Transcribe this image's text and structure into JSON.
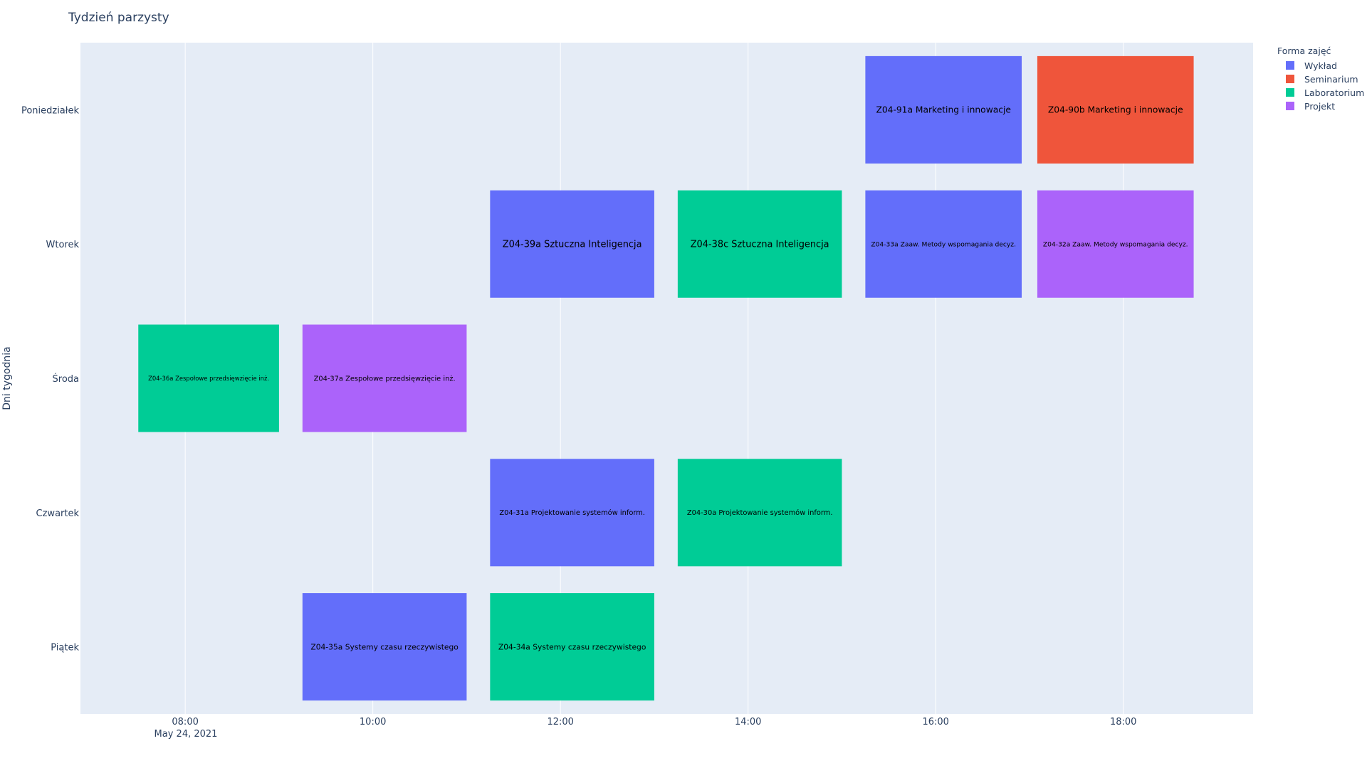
{
  "chart_data": {
    "type": "timeline",
    "title": "Tydzień parzysty",
    "xlabel": "",
    "ylabel": "Dni tygodnia",
    "x_date_label": "May 24, 2021",
    "x_range": [
      "2021-05-24 06:53",
      "2021-05-24 19:23"
    ],
    "x_ticks": [
      "08:00",
      "10:00",
      "12:00",
      "14:00",
      "16:00",
      "18:00"
    ],
    "categories": [
      "Poniedziałek",
      "Wtorek",
      "Środa",
      "Czwartek",
      "Piątek"
    ],
    "grid": true,
    "legend": {
      "title": "Forma zajęć",
      "position": "top-right",
      "entries": [
        {
          "name": "Wykład",
          "color": "#636efa"
        },
        {
          "name": "Seminarium",
          "color": "#ef553b"
        },
        {
          "name": "Laboratorium",
          "color": "#00cc96"
        },
        {
          "name": "Projekt",
          "color": "#ab63fa"
        }
      ]
    },
    "tasks": [
      {
        "day": "Poniedziałek",
        "start": "2021-05-24 15:15",
        "end": "2021-05-24 16:55",
        "type": "Wykład",
        "label": "Z04-91a Marketing i innowacje"
      },
      {
        "day": "Poniedziałek",
        "start": "2021-05-24 17:05",
        "end": "2021-05-24 18:45",
        "type": "Seminarium",
        "label": "Z04-90b Marketing i innowacje"
      },
      {
        "day": "Wtorek",
        "start": "2021-05-24 11:15",
        "end": "2021-05-24 13:00",
        "type": "Wykład",
        "label": "Z04-39a Sztuczna Inteligencja"
      },
      {
        "day": "Wtorek",
        "start": "2021-05-24 13:15",
        "end": "2021-05-24 15:00",
        "type": "Laboratorium",
        "label": "Z04-38c Sztuczna Inteligencja"
      },
      {
        "day": "Wtorek",
        "start": "2021-05-24 15:15",
        "end": "2021-05-24 16:55",
        "type": "Wykład",
        "label": "Z04-33a Zaaw. Metody wspomagania decyz."
      },
      {
        "day": "Wtorek",
        "start": "2021-05-24 17:05",
        "end": "2021-05-24 18:45",
        "type": "Projekt",
        "label": "Z04-32a Zaaw. Metody wspomagania decyz."
      },
      {
        "day": "Środa",
        "start": "2021-05-24 07:30",
        "end": "2021-05-24 09:00",
        "type": "Laboratorium",
        "label": "Z04-36a Zespołowe przedsięwzięcie inż."
      },
      {
        "day": "Środa",
        "start": "2021-05-24 09:15",
        "end": "2021-05-24 11:00",
        "type": "Projekt",
        "label": "Z04-37a Zespołowe przedsięwzięcie inż."
      },
      {
        "day": "Czwartek",
        "start": "2021-05-24 11:15",
        "end": "2021-05-24 13:00",
        "type": "Wykład",
        "label": "Z04-31a Projektowanie systemów inform."
      },
      {
        "day": "Czwartek",
        "start": "2021-05-24 13:15",
        "end": "2021-05-24 15:00",
        "type": "Laboratorium",
        "label": "Z04-30a Projektowanie systemów inform."
      },
      {
        "day": "Piątek",
        "start": "2021-05-24 09:15",
        "end": "2021-05-24 11:00",
        "type": "Wykład",
        "label": "Z04-35a Systemy czasu rzeczywistego"
      },
      {
        "day": "Piątek",
        "start": "2021-05-24 11:15",
        "end": "2021-05-24 13:00",
        "type": "Laboratorium",
        "label": "Z04-34a Systemy czasu rzeczywistego"
      }
    ]
  }
}
